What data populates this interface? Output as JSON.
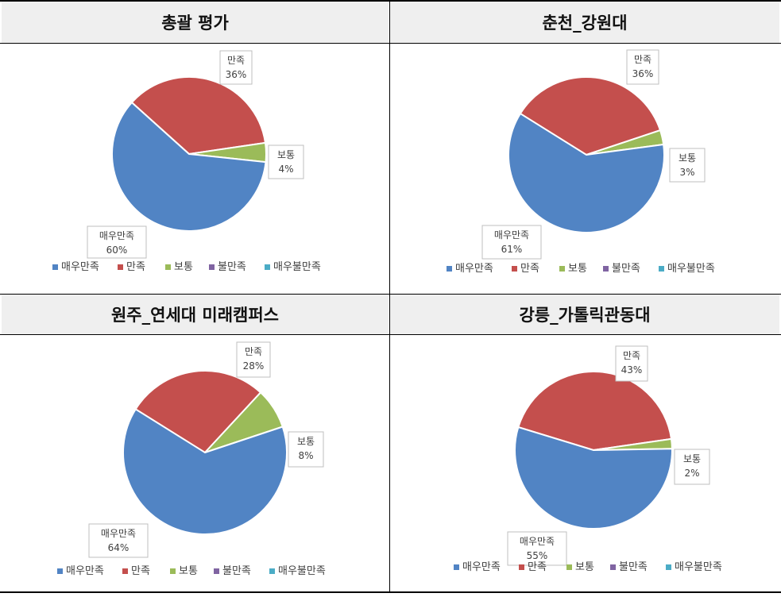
{
  "colors": {
    "매우만족": "#5184c4",
    "만족": "#c44f4d",
    "보통": "#9bbb59",
    "불만족": "#8064a2",
    "매우불만족": "#4bacc6"
  },
  "legend": [
    "매우만족",
    "만족",
    "보통",
    "불만족",
    "매우불만족"
  ],
  "chart_data": [
    {
      "type": "pie",
      "title": "총괄 평가",
      "categories": [
        "매우만족",
        "만족",
        "보통",
        "불만족",
        "매우불만족"
      ],
      "values": [
        60,
        36,
        4,
        0,
        0
      ],
      "labels": [
        "60%",
        "36%",
        "4%"
      ],
      "legend_position": "bottom"
    },
    {
      "type": "pie",
      "title": "춘천_강원대",
      "categories": [
        "매우만족",
        "만족",
        "보통",
        "불만족",
        "매우불만족"
      ],
      "values": [
        61,
        36,
        3,
        0,
        0
      ],
      "labels": [
        "61%",
        "36%",
        "3%"
      ],
      "legend_position": "bottom"
    },
    {
      "type": "pie",
      "title": "원주_연세대 미래캠퍼스",
      "categories": [
        "매우만족",
        "만족",
        "보통",
        "불만족",
        "매우불만족"
      ],
      "values": [
        64,
        28,
        8,
        0,
        0
      ],
      "labels": [
        "64%",
        "28%",
        "8%"
      ],
      "legend_position": "bottom"
    },
    {
      "type": "pie",
      "title": "강릉_가톨릭관동대",
      "categories": [
        "매우만족",
        "만족",
        "보통",
        "불만족",
        "매우불만족"
      ],
      "values": [
        55,
        43,
        2,
        0,
        0
      ],
      "labels": [
        "55%",
        "43%",
        "2%"
      ],
      "legend_position": "bottom"
    }
  ]
}
